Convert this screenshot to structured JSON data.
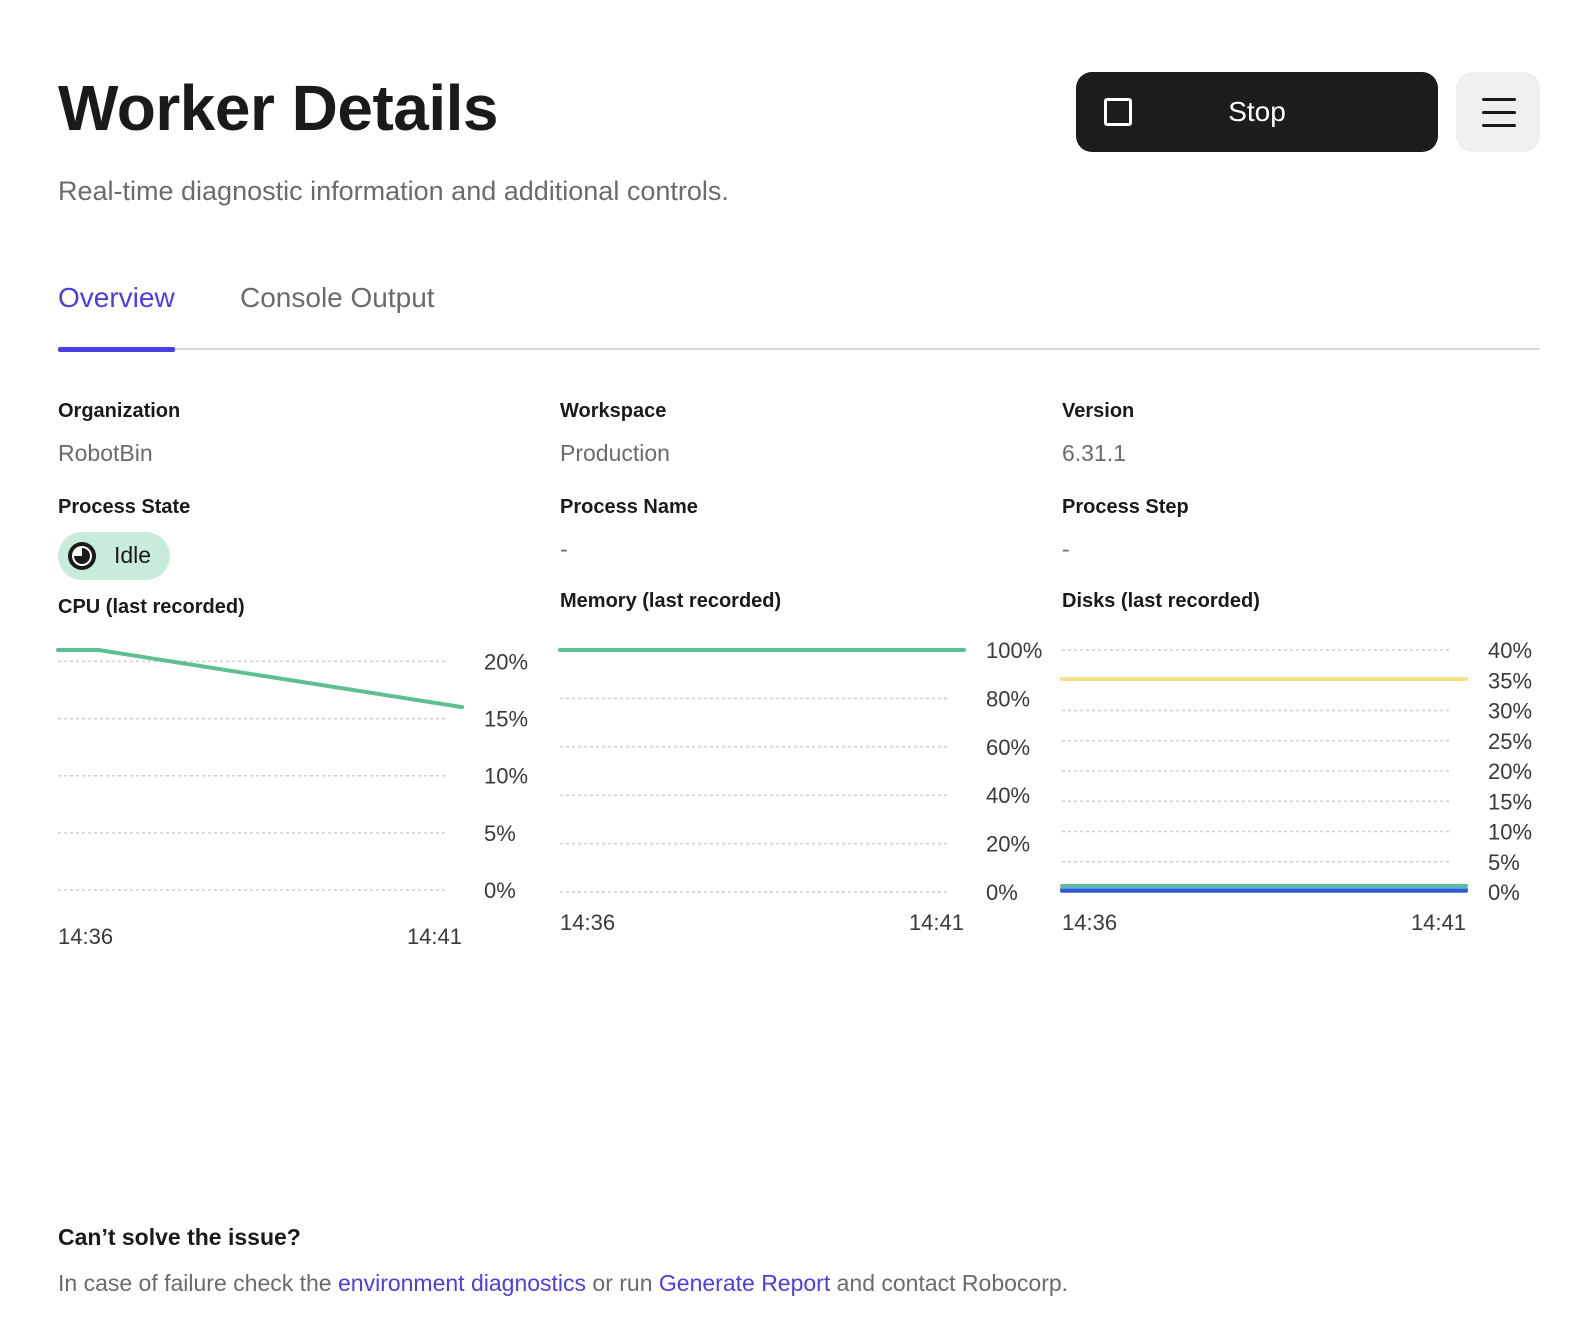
{
  "header": {
    "title": "Worker Details",
    "subtitle": "Real-time diagnostic information and additional controls."
  },
  "actions": {
    "stop_label": "Stop",
    "stop_icon": "stop-square-icon",
    "menu_icon": "hamburger-menu-icon"
  },
  "tabs": [
    {
      "label": "Overview",
      "active": true
    },
    {
      "label": "Console Output",
      "active": false
    }
  ],
  "details": {
    "organization": {
      "label": "Organization",
      "value": "RobotBin"
    },
    "workspace": {
      "label": "Workspace",
      "value": "Production"
    },
    "version": {
      "label": "Version",
      "value": "6.31.1"
    },
    "process_state": {
      "label": "Process State",
      "value": "Idle",
      "icon": "idle-clock-icon"
    },
    "process_name": {
      "label": "Process Name",
      "value": "-"
    },
    "process_step": {
      "label": "Process Step",
      "value": "-"
    }
  },
  "colors": {
    "accent": "#4a3fe0",
    "line_green": "#5dbf94",
    "line_yellow": "#f5e08a",
    "line_blue": "#3457d5",
    "badge_bg": "#c8ecd9"
  },
  "chart_data": [
    {
      "type": "line",
      "title": "CPU (last recorded)",
      "x": [
        "14:36",
        "14:41"
      ],
      "x_tick_labels": [
        "14:36",
        "14:41"
      ],
      "series": [
        {
          "values": [
            [
              0.0,
              21
            ],
            [
              0.1,
              21
            ],
            [
              1.0,
              16
            ]
          ],
          "color": "#5dbf94"
        }
      ],
      "y_ticks": [
        "20%",
        "15%",
        "10%",
        "5%",
        "0%"
      ],
      "ylim": [
        0,
        21
      ],
      "grid": true
    },
    {
      "type": "line",
      "title": "Memory (last recorded)",
      "x": [
        "14:36",
        "14:41"
      ],
      "x_tick_labels": [
        "14:36",
        "14:41"
      ],
      "series": [
        {
          "values": [
            [
              0.0,
              100
            ],
            [
              1.0,
              100
            ]
          ],
          "color": "#5dbf94"
        }
      ],
      "y_ticks": [
        "100%",
        "80%",
        "60%",
        "40%",
        "20%",
        "0%"
      ],
      "ylim": [
        0,
        100
      ],
      "grid": true
    },
    {
      "type": "line",
      "title": "Disks (last recorded)",
      "x": [
        "14:36",
        "14:41"
      ],
      "x_tick_labels": [
        "14:36",
        "14:41"
      ],
      "series": [
        {
          "values": [
            [
              0.0,
              35.2
            ],
            [
              1.0,
              35.2
            ]
          ],
          "color": "#f5e08a"
        },
        {
          "values": [
            [
              0.0,
              1.0
            ],
            [
              1.0,
              1.0
            ]
          ],
          "color": "#5dbf94"
        },
        {
          "values": [
            [
              0.0,
              0.5
            ],
            [
              1.0,
              0.5
            ]
          ],
          "color": "#5ab0e0"
        },
        {
          "values": [
            [
              0.0,
              0.2
            ],
            [
              1.0,
              0.2
            ]
          ],
          "color": "#3457d5"
        }
      ],
      "y_ticks": [
        "40%",
        "35%",
        "30%",
        "25%",
        "20%",
        "15%",
        "10%",
        "5%",
        "0%"
      ],
      "ylim": [
        0,
        40
      ],
      "grid": true
    }
  ],
  "help": {
    "title": "Can’t solve the issue?",
    "text_before": "In case of failure check the ",
    "link_diagnostics": "environment diagnostics",
    "text_middle": " or run ",
    "link_report": "Generate Report",
    "text_after": " and contact Robocorp."
  }
}
